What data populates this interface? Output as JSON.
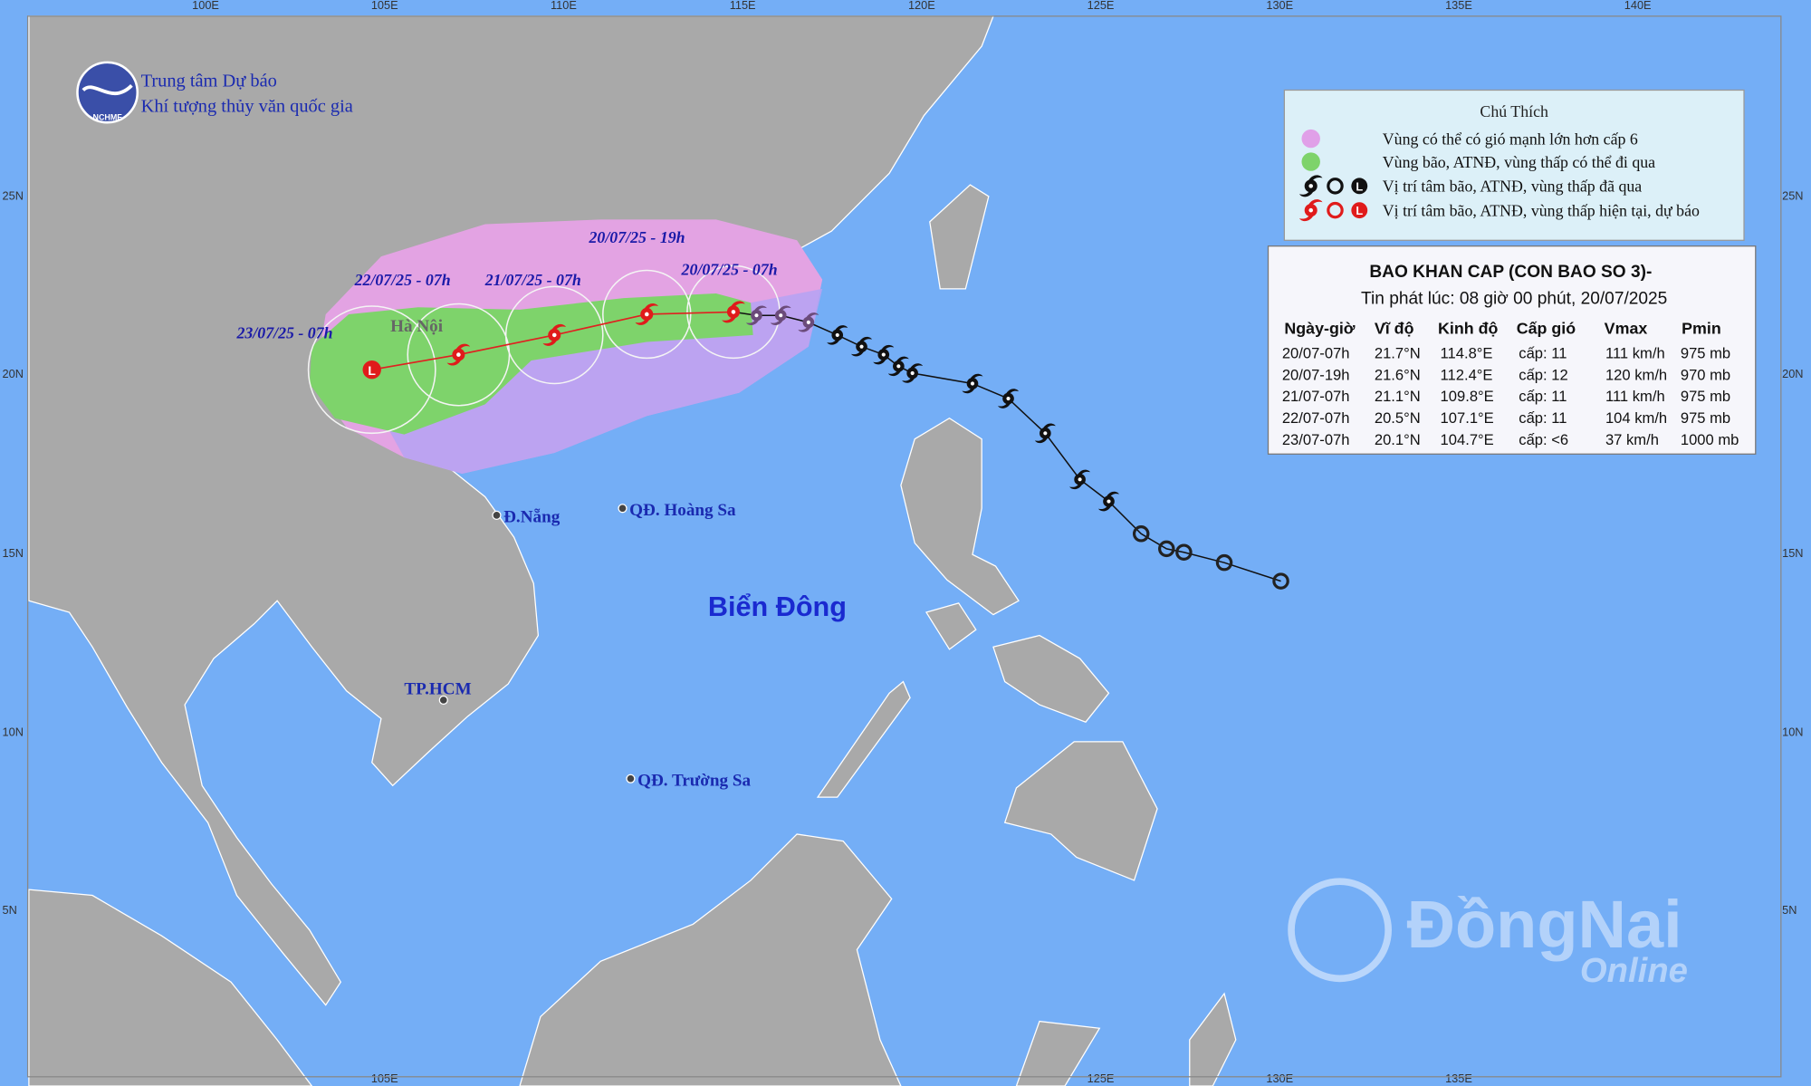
{
  "header": {
    "line1": "Trung tâm Dự báo",
    "line2": "Khí tượng thủy văn quốc gia",
    "logo_text": "NCHMF"
  },
  "axes": {
    "top": [
      "100E",
      "105E",
      "110E",
      "115E",
      "120E",
      "125E",
      "130E",
      "135E",
      "140E"
    ],
    "bottom": [
      "105E",
      "125E",
      "130E",
      "135E"
    ],
    "left": [
      "25N",
      "20N",
      "15N",
      "10N",
      "5N"
    ],
    "right": [
      "25N",
      "20N",
      "15N",
      "10N",
      "5N"
    ]
  },
  "legend": {
    "title": "Chú Thích",
    "symbol_low": "L",
    "items": [
      "Vùng có thể có gió mạnh lớn hơn cấp 6",
      "Vùng bão, ATNĐ, vùng thấp có thể đi qua",
      "Vị trí tâm bão, ATNĐ, vùng thấp đã qua",
      "Vị trí tâm bão, ATNĐ, vùng thấp hiện tại, dự báo"
    ]
  },
  "bulletin": {
    "title": "BAO KHAN CAP (CON BAO SO 3)-",
    "subtitle": "Tin phát lúc: 08 giờ 00 phút, 20/07/2025",
    "columns": [
      "Ngày-giờ",
      "Vĩ độ",
      "Kinh độ",
      "Cấp gió",
      "Vmax",
      "Pmin"
    ],
    "rows": [
      [
        "20/07-07h",
        "21.7°N",
        "114.8°E",
        "cấp: 11",
        "111 km/h",
        "975 mb"
      ],
      [
        "20/07-19h",
        "21.6°N",
        "112.4°E",
        "cấp: 12",
        "120 km/h",
        "970 mb"
      ],
      [
        "21/07-07h",
        "21.1°N",
        "109.8°E",
        "cấp: 11",
        "111 km/h",
        "975 mb"
      ],
      [
        "22/07-07h",
        "20.5°N",
        "107.1°E",
        "cấp: 11",
        "104 km/h",
        "975 mb"
      ],
      [
        "23/07-07h",
        "20.1°N",
        "104.7°E",
        "cấp: <6",
        "37 km/h",
        "1000 mb"
      ]
    ]
  },
  "forecast_labels": [
    "20/07/25 - 19h",
    "20/07/25 - 07h",
    "21/07/25 - 07h",
    "22/07/25 - 07h",
    "23/07/25 - 07h"
  ],
  "places": [
    "Hà Nội",
    "Đ.Nẵng",
    "QĐ. Hoàng Sa",
    "TP.HCM",
    "QĐ. Trường Sa"
  ],
  "sea_name": "Biển Đông",
  "watermark": {
    "brand": "ĐồngNai",
    "sub": "Online"
  }
}
